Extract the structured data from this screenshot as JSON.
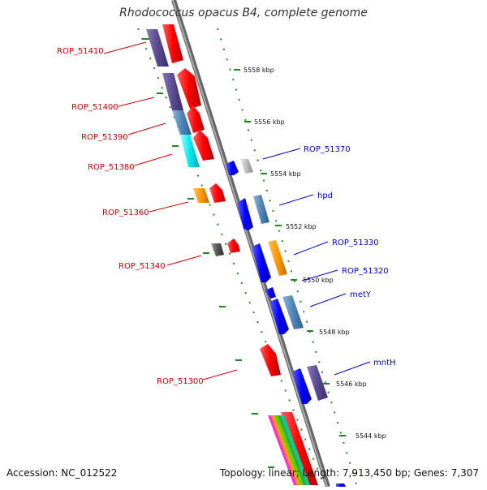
{
  "title": "Rhodococcus opacus B4, complete genome",
  "footer": {
    "accession": "Accession: NC_012522",
    "summary": "Topology: linear; Length: 7,913,450 bp; Genes: 7,307"
  },
  "scale": {
    "ticks": [
      "5558 kbp",
      "5556 kbp",
      "5554 kbp",
      "5552 kbp",
      "5550 kbp",
      "5548 kbp",
      "5546 kbp",
      "5544 kbp"
    ]
  },
  "labels": {
    "left": [
      "ROP_51410",
      "ROP_51400",
      "ROP_51390",
      "ROP_51380",
      "ROP_51360",
      "ROP_51340",
      "ROP_51300"
    ],
    "right": [
      "ROP_51370",
      "hpd",
      "ROP_51330",
      "ROP_51320",
      "metY",
      "mntH"
    ]
  },
  "colors": {
    "left_label": "#cc0000",
    "right_label": "#0000cc",
    "backbone": "#8a8a8a",
    "dotted_guide": "#228822"
  }
}
